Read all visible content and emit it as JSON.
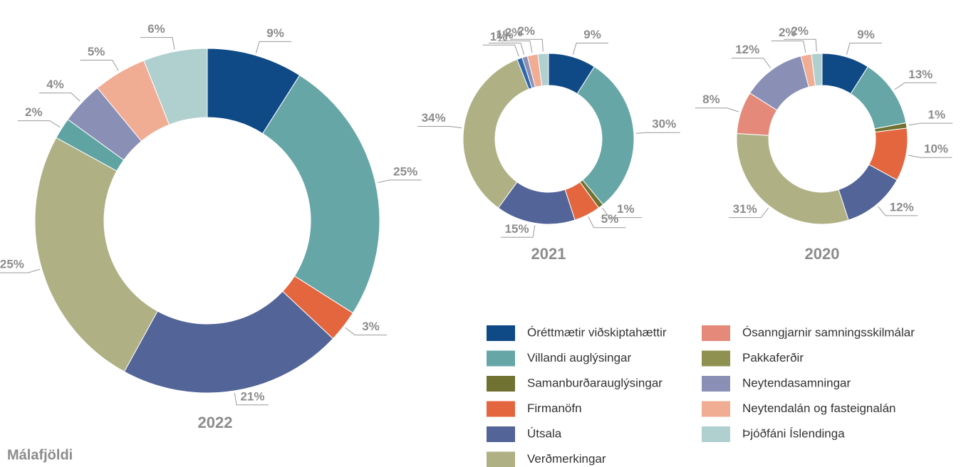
{
  "chart_data": [
    {
      "type": "donut",
      "title": "2022",
      "values": [
        9,
        25,
        3,
        21,
        25,
        2,
        4,
        5,
        6
      ],
      "value_labels": [
        "9%",
        "25%",
        "3%",
        "21%",
        "25%",
        "2%",
        "4%",
        "5%",
        "6%"
      ],
      "colors": [
        "#0f4a87",
        "#67a6a6",
        "#e4663f",
        "#536498",
        "#b0b085",
        "#5fa3a3",
        "#8a8fb5",
        "#f0ad94",
        "#b0cfcf"
      ]
    },
    {
      "type": "donut",
      "title": "2021",
      "values": [
        9,
        30,
        1,
        5,
        15,
        34,
        1,
        1,
        2,
        2
      ],
      "value_labels": [
        "9%",
        "30%",
        "1%",
        "5%",
        "15%",
        "34%",
        "1%",
        "1%",
        "2%",
        "2%"
      ],
      "colors": [
        "#0f4a87",
        "#67a6a6",
        "#6f7230",
        "#e4663f",
        "#536498",
        "#b0b085",
        "#2f68a8",
        "#8a8fb5",
        "#f0ad94",
        "#b0cfcf"
      ]
    },
    {
      "type": "donut",
      "title": "2020",
      "values": [
        9,
        13,
        1,
        10,
        12,
        31,
        8,
        12,
        2,
        2
      ],
      "value_labels": [
        "9%",
        "13%",
        "1%",
        "10%",
        "12%",
        "31%",
        "8%",
        "12%",
        "2%",
        "2%"
      ],
      "colors": [
        "#0f4a87",
        "#67a6a6",
        "#6f7230",
        "#e4663f",
        "#536498",
        "#b0b085",
        "#e5897a",
        "#8a8fb5",
        "#f0ad94",
        "#b0cfcf"
      ]
    }
  ],
  "legend": [
    {
      "name": "Óréttmætir viðskiptahættir",
      "color": "#0f4a87"
    },
    {
      "name": "Villandi auglýsingar",
      "color": "#67a6a6"
    },
    {
      "name": "Samanburðarauglýsingar",
      "color": "#6f7230"
    },
    {
      "name": "Firmanöfn",
      "color": "#e4663f"
    },
    {
      "name": "Útsala",
      "color": "#536498"
    },
    {
      "name": "Verðmerkingar",
      "color": "#b0b085"
    },
    {
      "name": "Ósanngjarnir samningsskilmálar",
      "color": "#e5897a"
    },
    {
      "name": "Pakkaferðir",
      "color": "#8f9150"
    },
    {
      "name": "Neytendasamningar",
      "color": "#8a8fb5"
    },
    {
      "name": "Neytendalán og fasteignalán",
      "color": "#f0ad94"
    },
    {
      "name": "Þjóðfáni Íslendinga",
      "color": "#b0cfcf"
    }
  ],
  "caption": "Málafjöldi"
}
